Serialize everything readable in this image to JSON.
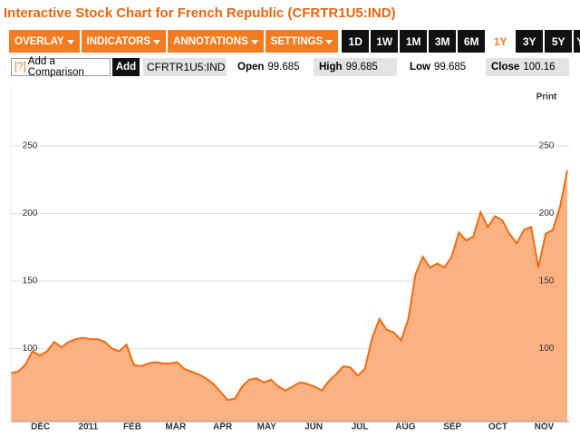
{
  "header": {
    "title": "Interactive Stock Chart for French Republic (CFRTR1U5:IND)"
  },
  "toolbar": {
    "menus": [
      "OVERLAY",
      "INDICATORS",
      "ANNOTATIONS",
      "SETTINGS"
    ],
    "ranges": [
      "1D",
      "1W",
      "1M",
      "3M",
      "6M",
      "1Y",
      "3Y",
      "5Y",
      "YTD"
    ],
    "active_range": 5
  },
  "comparison": {
    "help": "[?]",
    "placeholder": "Add a Comparison",
    "button": "Add",
    "symbol": "CFRTR1U5:IND"
  },
  "quote": [
    {
      "label": "Open",
      "value": 99.685
    },
    {
      "label": "High",
      "value": 99.685
    },
    {
      "label": "Low",
      "value": 99.685
    },
    {
      "label": "Close",
      "value": 100.16
    }
  ],
  "print": "Print",
  "chart_data": {
    "type": "area",
    "color": "#f26a10",
    "fill": "#fcb182",
    "values": [
      82,
      83,
      88,
      98,
      95,
      98,
      105,
      101,
      105,
      107,
      108,
      107,
      107,
      105,
      100,
      98,
      103,
      88,
      87,
      89,
      90,
      89,
      89,
      90,
      85,
      83,
      81,
      78,
      74,
      68,
      62,
      63,
      72,
      77,
      78,
      75,
      77,
      72,
      69,
      72,
      75,
      74,
      72,
      69,
      76,
      81,
      87,
      86,
      80,
      85,
      108,
      122,
      114,
      112,
      106,
      122,
      155,
      168,
      160,
      163,
      160,
      168,
      186,
      180,
      183,
      201,
      190,
      198,
      195,
      185,
      178,
      188,
      190,
      160,
      185,
      188,
      205,
      232
    ],
    "xlim": [
      0,
      77
    ],
    "xticks": [
      {
        "value": 4.1,
        "label": "DEC"
      },
      {
        "value": 10.7,
        "label": "2011"
      },
      {
        "value": 16.8,
        "label": "FEB"
      },
      {
        "value": 22.8,
        "label": "MAR"
      },
      {
        "value": 29.3,
        "label": "APR"
      },
      {
        "value": 35.4,
        "label": "MAY"
      },
      {
        "value": 41.9,
        "label": "JUN"
      },
      {
        "value": 48.3,
        "label": "JUL"
      },
      {
        "value": 54.6,
        "label": "AUG"
      },
      {
        "value": 61.1,
        "label": "SEP"
      },
      {
        "value": 67.4,
        "label": "OCT"
      },
      {
        "value": 73.8,
        "label": "NOV"
      }
    ],
    "ylim": [
      46,
      295
    ],
    "yticks": [
      100,
      150,
      200,
      250
    ],
    "grid": true
  }
}
